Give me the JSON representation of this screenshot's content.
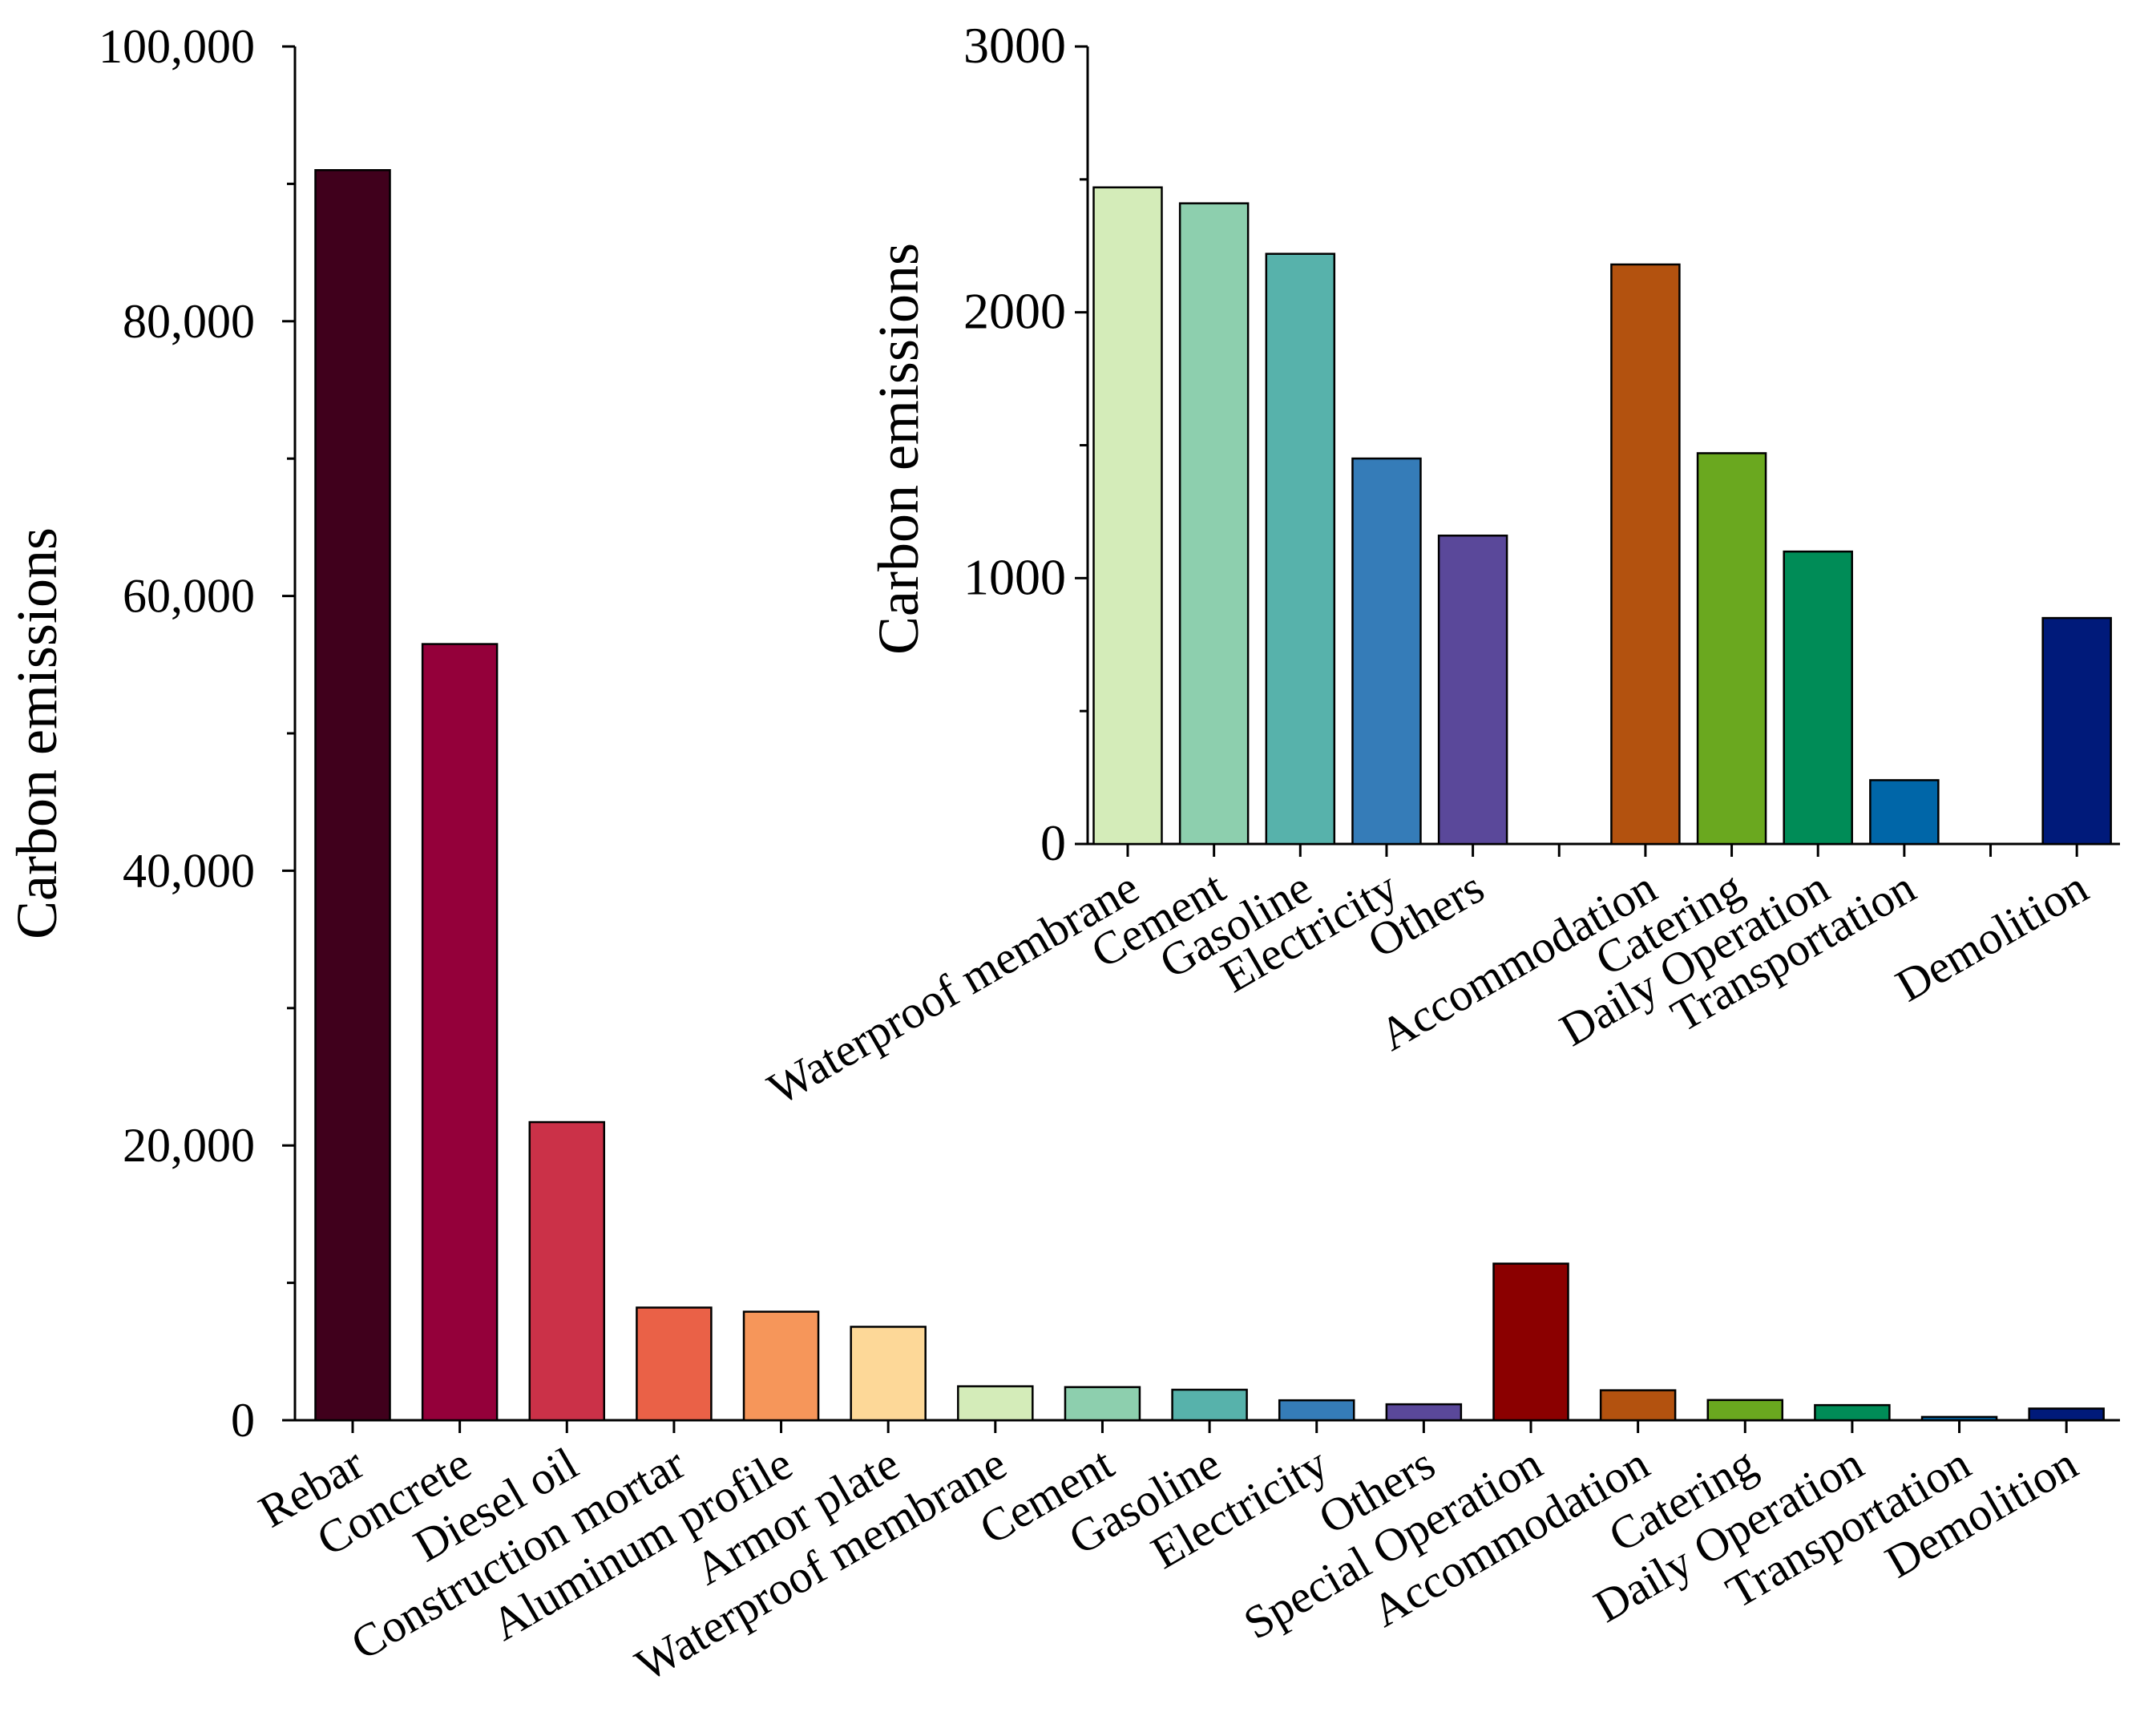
{
  "chart_data": [
    {
      "id": "main",
      "type": "bar",
      "title": "",
      "xlabel": "",
      "ylabel": "Carbon emissions",
      "ylim": [
        0,
        100000
      ],
      "yticks": [
        0,
        20000,
        40000,
        60000,
        80000,
        100000
      ],
      "ytick_labels": [
        "0",
        "20,000",
        "40,000",
        "60,000",
        "80,000",
        "100,000"
      ],
      "grid": false,
      "categories": [
        "Rebar",
        "Concrete",
        "Diesel oil",
        "Construction mortar",
        "Aluminum profile",
        "Armor plate",
        "Waterproof membrane",
        "Cement",
        "Gasoline",
        "Electricity",
        "Others",
        "Special Operation",
        "Accommodation",
        "Catering",
        "Daily Operation",
        "Transportation",
        "Demolition"
      ],
      "values": [
        91000,
        56500,
        21700,
        8200,
        7900,
        6800,
        2470,
        2410,
        2220,
        1450,
        1160,
        11400,
        2180,
        1470,
        1100,
        240,
        850
      ],
      "colors": [
        "#40001c",
        "#94003a",
        "#cb3148",
        "#ea6147",
        "#f6965a",
        "#fdd898",
        "#d4ecb9",
        "#8dcfae",
        "#57b2ab",
        "#357cb8",
        "#5a489a",
        "#8b0000",
        "#b3520f",
        "#6aa81f",
        "#008c57",
        "#0066a8",
        "#001a7a"
      ]
    },
    {
      "id": "inset",
      "type": "bar",
      "title": "",
      "xlabel": "",
      "ylabel": "Carbon emissions",
      "ylim": [
        0,
        3000
      ],
      "yticks": [
        0,
        1000,
        2000,
        3000
      ],
      "ytick_labels": [
        "0",
        "1000",
        "2000",
        "3000"
      ],
      "grid": false,
      "categories": [
        "Waterproof membrane",
        "Cement",
        "Gasoline",
        "Electricity",
        "Others",
        "",
        "Accommodation",
        "Catering",
        "Daily Operation",
        "Transportation",
        "",
        "Demolition"
      ],
      "values": [
        2470,
        2410,
        2220,
        1450,
        1160,
        null,
        2180,
        1470,
        1100,
        240,
        null,
        850
      ],
      "colors": [
        "#d4ecb9",
        "#8dcfae",
        "#57b2ab",
        "#357cb8",
        "#5a489a",
        "",
        "#b3520f",
        "#6aa81f",
        "#008c57",
        "#0066a8",
        "",
        "#001a7a"
      ]
    }
  ]
}
